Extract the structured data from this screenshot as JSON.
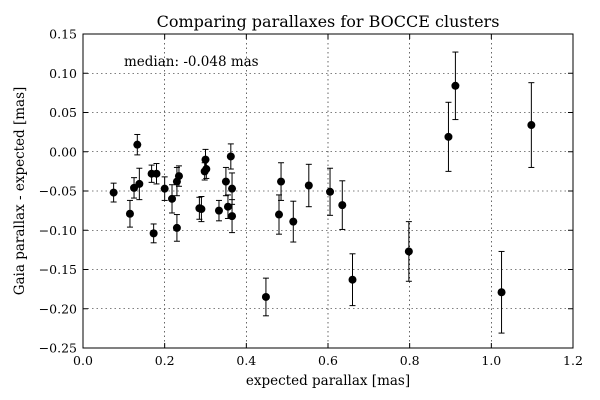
{
  "chart_data": {
    "type": "scatter",
    "title": "Comparing parallaxes for BOCCE clusters",
    "xlabel": "expected parallax [mas]",
    "ylabel": "Gaia parallax - expected [mas]",
    "annotation": "median: -0.048 mas",
    "xlim": [
      0.0,
      1.2
    ],
    "ylim": [
      -0.25,
      0.15
    ],
    "xticks": [
      0.0,
      0.2,
      0.4,
      0.6,
      0.8,
      1.0,
      1.2
    ],
    "xtick_labels": [
      "0.0",
      "0.2",
      "0.4",
      "0.6",
      "0.8",
      "1.0",
      "1.2"
    ],
    "yticks": [
      -0.25,
      -0.2,
      -0.15,
      -0.1,
      -0.05,
      0.0,
      0.05,
      0.1,
      0.15
    ],
    "ytick_labels": [
      "−0.25",
      "−0.20",
      "−0.15",
      "−0.10",
      "−0.05",
      "0.00",
      "0.05",
      "0.10",
      "0.15"
    ],
    "grid": true,
    "points": [
      {
        "x": 0.075,
        "y": -0.052,
        "err": 0.012
      },
      {
        "x": 0.115,
        "y": -0.079,
        "err": 0.017
      },
      {
        "x": 0.125,
        "y": -0.046,
        "err": 0.013
      },
      {
        "x": 0.133,
        "y": 0.009,
        "err": 0.013
      },
      {
        "x": 0.138,
        "y": -0.041,
        "err": 0.02
      },
      {
        "x": 0.168,
        "y": -0.028,
        "err": 0.011
      },
      {
        "x": 0.173,
        "y": -0.104,
        "err": 0.012
      },
      {
        "x": 0.18,
        "y": -0.028,
        "err": 0.013
      },
      {
        "x": 0.2,
        "y": -0.047,
        "err": 0.015
      },
      {
        "x": 0.218,
        "y": -0.06,
        "err": 0.018
      },
      {
        "x": 0.23,
        "y": -0.097,
        "err": 0.017
      },
      {
        "x": 0.23,
        "y": -0.038,
        "err": 0.018
      },
      {
        "x": 0.235,
        "y": -0.031,
        "err": 0.013
      },
      {
        "x": 0.285,
        "y": -0.072,
        "err": 0.014
      },
      {
        "x": 0.29,
        "y": -0.073,
        "err": 0.016
      },
      {
        "x": 0.298,
        "y": -0.025,
        "err": 0.011
      },
      {
        "x": 0.3,
        "y": -0.01,
        "err": 0.013
      },
      {
        "x": 0.302,
        "y": -0.022,
        "err": 0.012
      },
      {
        "x": 0.333,
        "y": -0.075,
        "err": 0.013
      },
      {
        "x": 0.35,
        "y": -0.038,
        "err": 0.018
      },
      {
        "x": 0.355,
        "y": -0.07,
        "err": 0.015
      },
      {
        "x": 0.362,
        "y": -0.006,
        "err": 0.016
      },
      {
        "x": 0.365,
        "y": -0.047,
        "err": 0.02
      },
      {
        "x": 0.365,
        "y": -0.082,
        "err": 0.021
      },
      {
        "x": 0.448,
        "y": -0.185,
        "err": 0.024
      },
      {
        "x": 0.48,
        "y": -0.08,
        "err": 0.025
      },
      {
        "x": 0.485,
        "y": -0.038,
        "err": 0.024
      },
      {
        "x": 0.515,
        "y": -0.089,
        "err": 0.026
      },
      {
        "x": 0.553,
        "y": -0.043,
        "err": 0.027
      },
      {
        "x": 0.605,
        "y": -0.051,
        "err": 0.03
      },
      {
        "x": 0.635,
        "y": -0.068,
        "err": 0.031
      },
      {
        "x": 0.66,
        "y": -0.163,
        "err": 0.033
      },
      {
        "x": 0.798,
        "y": -0.127,
        "err": 0.038
      },
      {
        "x": 0.895,
        "y": 0.019,
        "err": 0.044
      },
      {
        "x": 0.912,
        "y": 0.084,
        "err": 0.043
      },
      {
        "x": 1.025,
        "y": -0.179,
        "err": 0.052
      },
      {
        "x": 1.098,
        "y": 0.034,
        "err": 0.054
      }
    ]
  }
}
